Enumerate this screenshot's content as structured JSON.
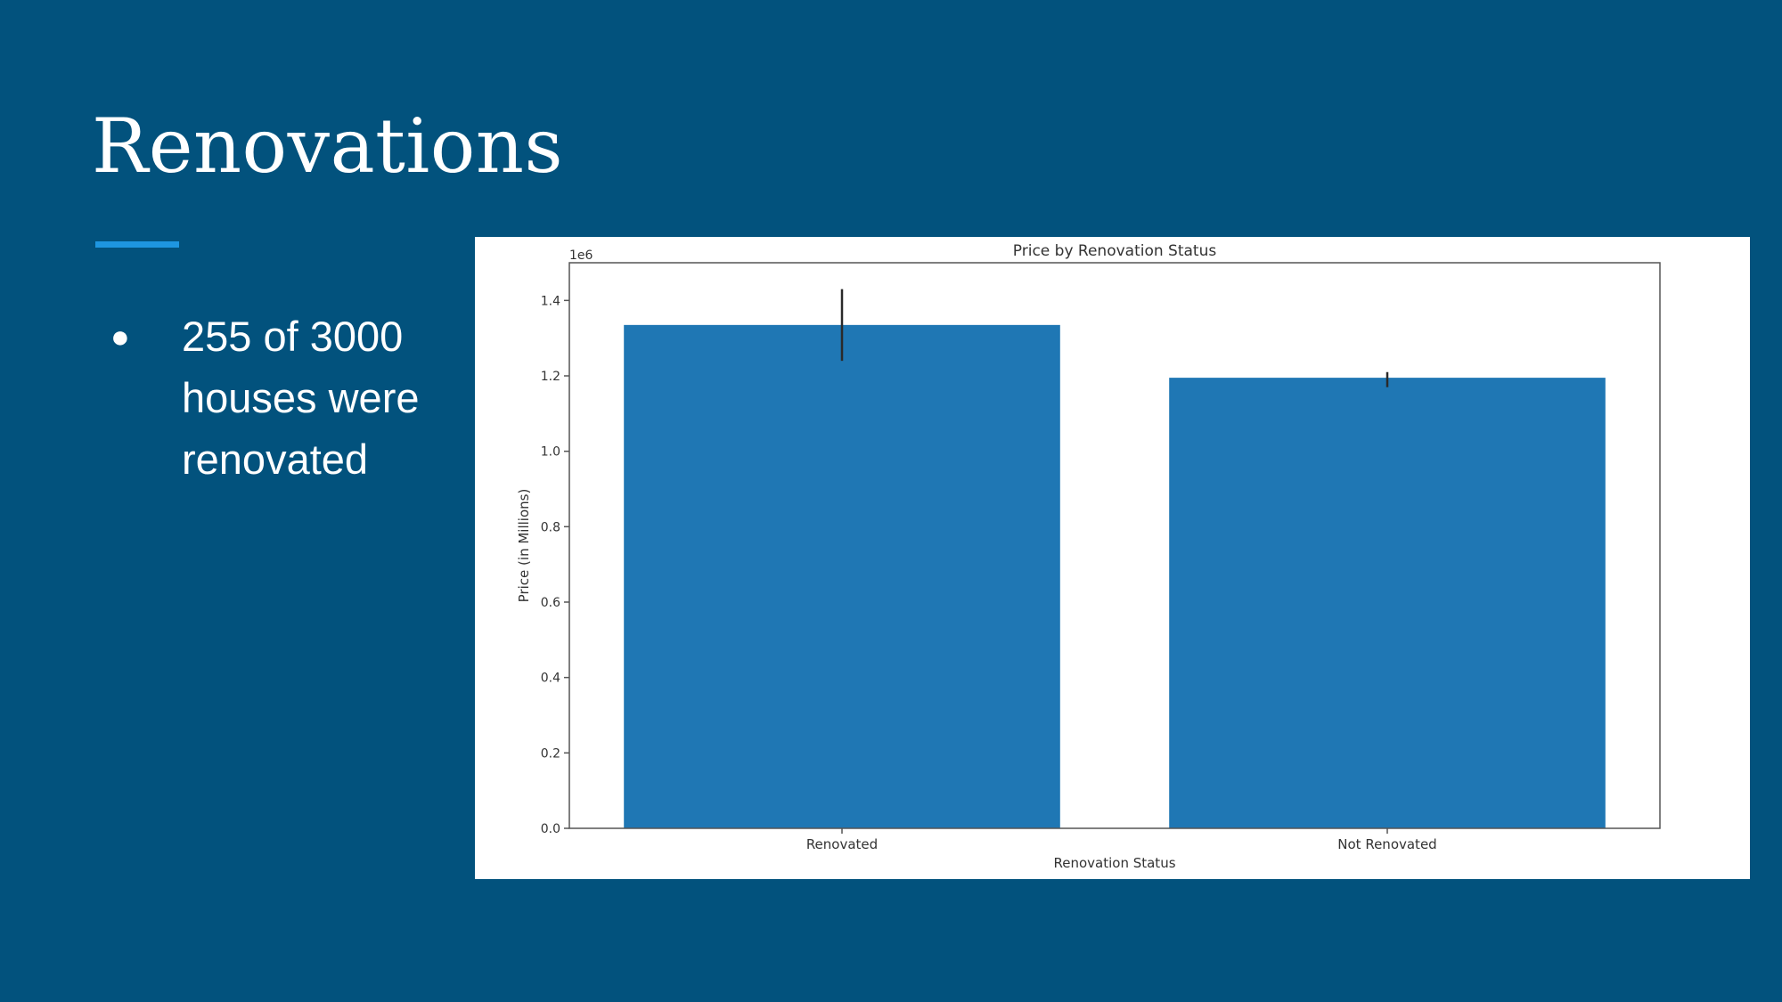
{
  "slide": {
    "title": "Renovations",
    "bullets": [
      "255 of 3000 houses were renovated"
    ],
    "accent_color": "#1e96e0",
    "background_color": "#02527d"
  },
  "chart_data": {
    "type": "bar",
    "title": "Price by Renovation Status",
    "xlabel": "Renovation Status",
    "ylabel": "Price (in Millions)",
    "y_offset_label": "1e6",
    "categories": [
      "Renovated",
      "Not Renovated"
    ],
    "values": [
      1.335,
      1.195
    ],
    "error_bars": [
      [
        1.24,
        1.43
      ],
      [
        1.17,
        1.21
      ]
    ],
    "ylim": [
      0,
      1.5
    ],
    "yticks": [
      0.0,
      0.2,
      0.4,
      0.6,
      0.8,
      1.0,
      1.2,
      1.4
    ],
    "bar_color": "#1f77b4",
    "grid": false
  }
}
